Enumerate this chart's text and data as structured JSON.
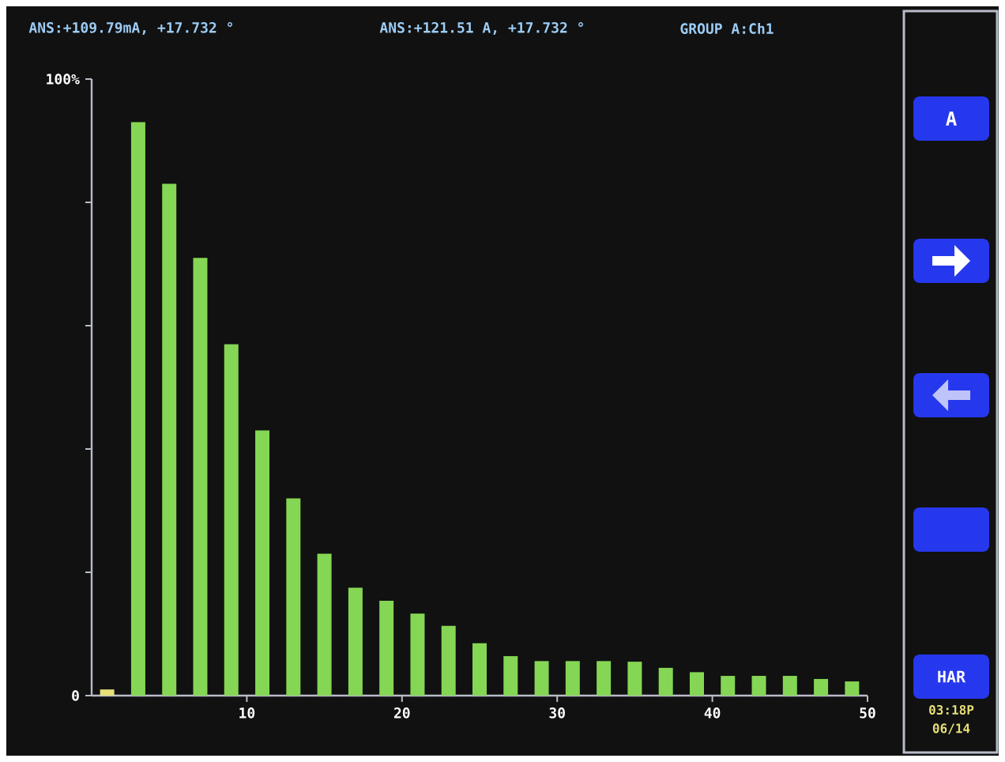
{
  "chart_data": {
    "type": "bar",
    "x": [
      1,
      3,
      5,
      7,
      9,
      11,
      13,
      15,
      17,
      19,
      21,
      23,
      25,
      27,
      29,
      31,
      33,
      35,
      37,
      39,
      41,
      43,
      45,
      47,
      49
    ],
    "values": [
      1,
      93,
      83,
      71,
      57,
      43,
      32,
      23,
      17.5,
      15.4,
      13.3,
      11.3,
      8.5,
      6.4,
      5.6,
      5.6,
      5.6,
      5.5,
      4.5,
      3.8,
      3.2,
      3.2,
      3.2,
      2.7,
      2.3
    ],
    "colors": [
      "#e6df7a",
      "#84d654",
      "#84d654",
      "#84d654",
      "#84d654",
      "#84d654",
      "#84d654",
      "#84d654",
      "#84d654",
      "#84d654",
      "#84d654",
      "#84d654",
      "#84d654",
      "#84d654",
      "#84d654",
      "#84d654",
      "#84d654",
      "#84d654",
      "#84d654",
      "#84d654",
      "#84d654",
      "#84d654",
      "#84d654",
      "#84d654",
      "#84d654"
    ],
    "xlim": [
      0,
      50
    ],
    "xticks": [
      10,
      20,
      30,
      40,
      50
    ],
    "ylim": [
      0,
      100
    ],
    "yticks": [
      0,
      {
        "value": 20,
        "label": null
      },
      {
        "value": 40,
        "label": null
      },
      {
        "value": 60,
        "label": null
      },
      {
        "value": 80,
        "label": null
      },
      {
        "value": 100,
        "label": "100%"
      }
    ],
    "annotations": [
      "ANS:+109.79mA, +17.732 °",
      "ANS:+121.51 A, +17.732 °",
      "GROUP A:Ch1",
      "A",
      "HAR",
      "03:18P",
      "06/14"
    ]
  }
}
